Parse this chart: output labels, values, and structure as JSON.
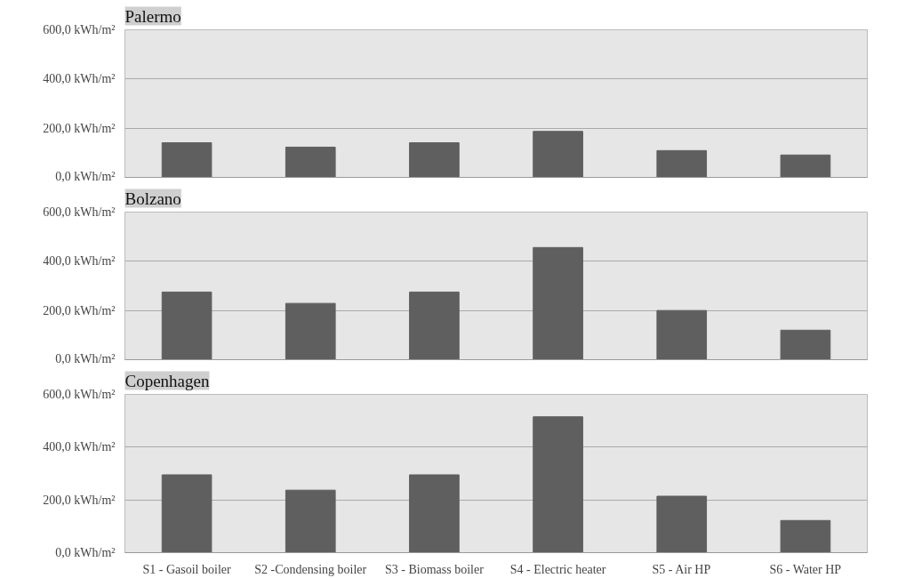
{
  "chart_data": [
    {
      "type": "bar",
      "title": "Palermo",
      "categories": [
        null,
        null,
        null,
        null,
        null,
        null
      ],
      "values": [
        141,
        123,
        141,
        187,
        109,
        91
      ],
      "color": "#5f5f5f",
      "ylim": [
        0,
        600
      ],
      "yticks": [
        {
          "value": 0,
          "label": "0,0 kWh/m²"
        },
        {
          "value": 200,
          "label": "200,0 kWh/m²"
        },
        {
          "value": 400,
          "label": "400,0 kWh/m²"
        },
        {
          "value": 600,
          "label": "600,0 kWh/m²"
        }
      ],
      "grid": "y",
      "tick_labels": "y"
    },
    {
      "type": "bar",
      "title": "Bolzano",
      "categories": [
        null,
        null,
        null,
        null,
        null,
        null
      ],
      "values": [
        275,
        229,
        275,
        456,
        200,
        120
      ],
      "color": "#5f5f5f",
      "ylim": [
        0,
        600
      ],
      "yticks": [
        {
          "value": 0,
          "label": "0,0 kWh/m²"
        },
        {
          "value": 200,
          "label": "200,0 kWh/m²"
        },
        {
          "value": 400,
          "label": "400,0 kWh/m²"
        },
        {
          "value": 600,
          "label": "600,0 kWh/m²"
        }
      ],
      "grid": "y",
      "tick_labels": "y"
    },
    {
      "type": "bar",
      "title": "Copenhagen",
      "categories": [
        "S1 - Gasoil boiler",
        "S2 -Condensing boiler",
        "S3 - Biomass boiler",
        "S4 - Electric heater",
        "S5 - Air HP",
        "S6 - Water HP"
      ],
      "values": [
        295,
        237,
        295,
        515,
        214,
        122
      ],
      "color": "#5f5f5f",
      "ylim": [
        0,
        600
      ],
      "yticks": [
        {
          "value": 0,
          "label": "0,0 kWh/m²"
        },
        {
          "value": 200,
          "label": "200,0 kWh/m²"
        },
        {
          "value": 400,
          "label": "400,0 kWh/m²"
        },
        {
          "value": 600,
          "label": "600,0 kWh/m²"
        }
      ],
      "grid": "y"
    }
  ]
}
